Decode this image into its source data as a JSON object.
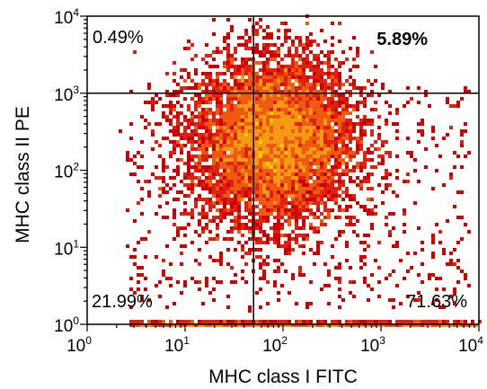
{
  "chart_data": {
    "type": "scatter",
    "subtype": "flow-cytometry-density-plot",
    "title": "",
    "xlabel": "MHC class I FITC",
    "ylabel": "MHC class II PE",
    "xscale": "log",
    "yscale": "log",
    "xlim": [
      1,
      10000
    ],
    "ylim": [
      1,
      10000
    ],
    "x_ticks": [
      {
        "base": "10",
        "exp": "0"
      },
      {
        "base": "10",
        "exp": "1"
      },
      {
        "base": "10",
        "exp": "2"
      },
      {
        "base": "10",
        "exp": "3"
      },
      {
        "base": "10",
        "exp": "4"
      }
    ],
    "y_ticks": [
      {
        "base": "10",
        "exp": "0"
      },
      {
        "base": "10",
        "exp": "1"
      },
      {
        "base": "10",
        "exp": "2"
      },
      {
        "base": "10",
        "exp": "3"
      },
      {
        "base": "10",
        "exp": "4"
      }
    ],
    "gates": {
      "x": 50,
      "y": 1000
    },
    "quadrants": [
      {
        "position": "top-left",
        "label": "0.49%",
        "bold": false
      },
      {
        "position": "top-right",
        "label": "5.89%",
        "bold": true
      },
      {
        "position": "bottom-left",
        "label": "21.99%",
        "bold": false
      },
      {
        "position": "bottom-right",
        "label": "71.63%",
        "bold": false
      }
    ],
    "population": {
      "center_x": 80,
      "center_y": 250,
      "spread_x_decades": 0.42,
      "spread_y_decades": 0.55
    },
    "density_colors": [
      "#cc0000",
      "#e02010",
      "#ee5a10",
      "#f59a12",
      "#f8d000",
      "#e8f000",
      "#a8d830",
      "#40b060"
    ],
    "grid": false,
    "legend": "none"
  }
}
